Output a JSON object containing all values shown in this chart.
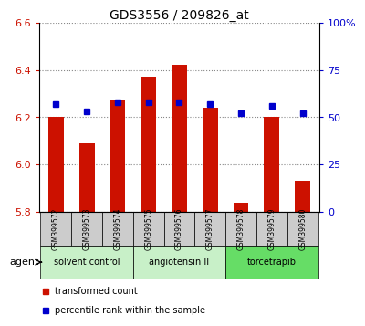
{
  "title": "GDS3556 / 209826_at",
  "samples": [
    "GSM399572",
    "GSM399573",
    "GSM399574",
    "GSM399575",
    "GSM399576",
    "GSM399577",
    "GSM399578",
    "GSM399579",
    "GSM399580"
  ],
  "transformed_counts": [
    6.2,
    6.09,
    6.27,
    6.37,
    6.42,
    6.24,
    5.84,
    6.2,
    5.93
  ],
  "percentile_ranks": [
    57,
    53,
    58,
    58,
    58,
    57,
    52,
    56,
    52
  ],
  "bar_bottom": 5.8,
  "ylim_left": [
    5.8,
    6.6
  ],
  "ylim_right": [
    0,
    100
  ],
  "yticks_left": [
    5.8,
    6.0,
    6.2,
    6.4,
    6.6
  ],
  "yticks_right": [
    0,
    25,
    50,
    75,
    100
  ],
  "ytick_labels_right": [
    "0",
    "25",
    "50",
    "75",
    "100%"
  ],
  "groups": [
    {
      "label": "solvent control",
      "start": 0,
      "end": 3,
      "color": "#c8f0c8"
    },
    {
      "label": "angiotensin II",
      "start": 3,
      "end": 6,
      "color": "#c8f0c8"
    },
    {
      "label": "torcetrapib",
      "start": 6,
      "end": 9,
      "color": "#66dd66"
    }
  ],
  "bar_color": "#cc1100",
  "dot_color": "#0000cc",
  "bar_width": 0.5,
  "grid_color": "#888888",
  "tick_label_color_left": "#cc1100",
  "tick_label_color_right": "#0000cc",
  "agent_label": "agent",
  "legend_items": [
    "transformed count",
    "percentile rank within the sample"
  ],
  "background_plot": "#ffffff",
  "sample_box_color": "#cccccc"
}
